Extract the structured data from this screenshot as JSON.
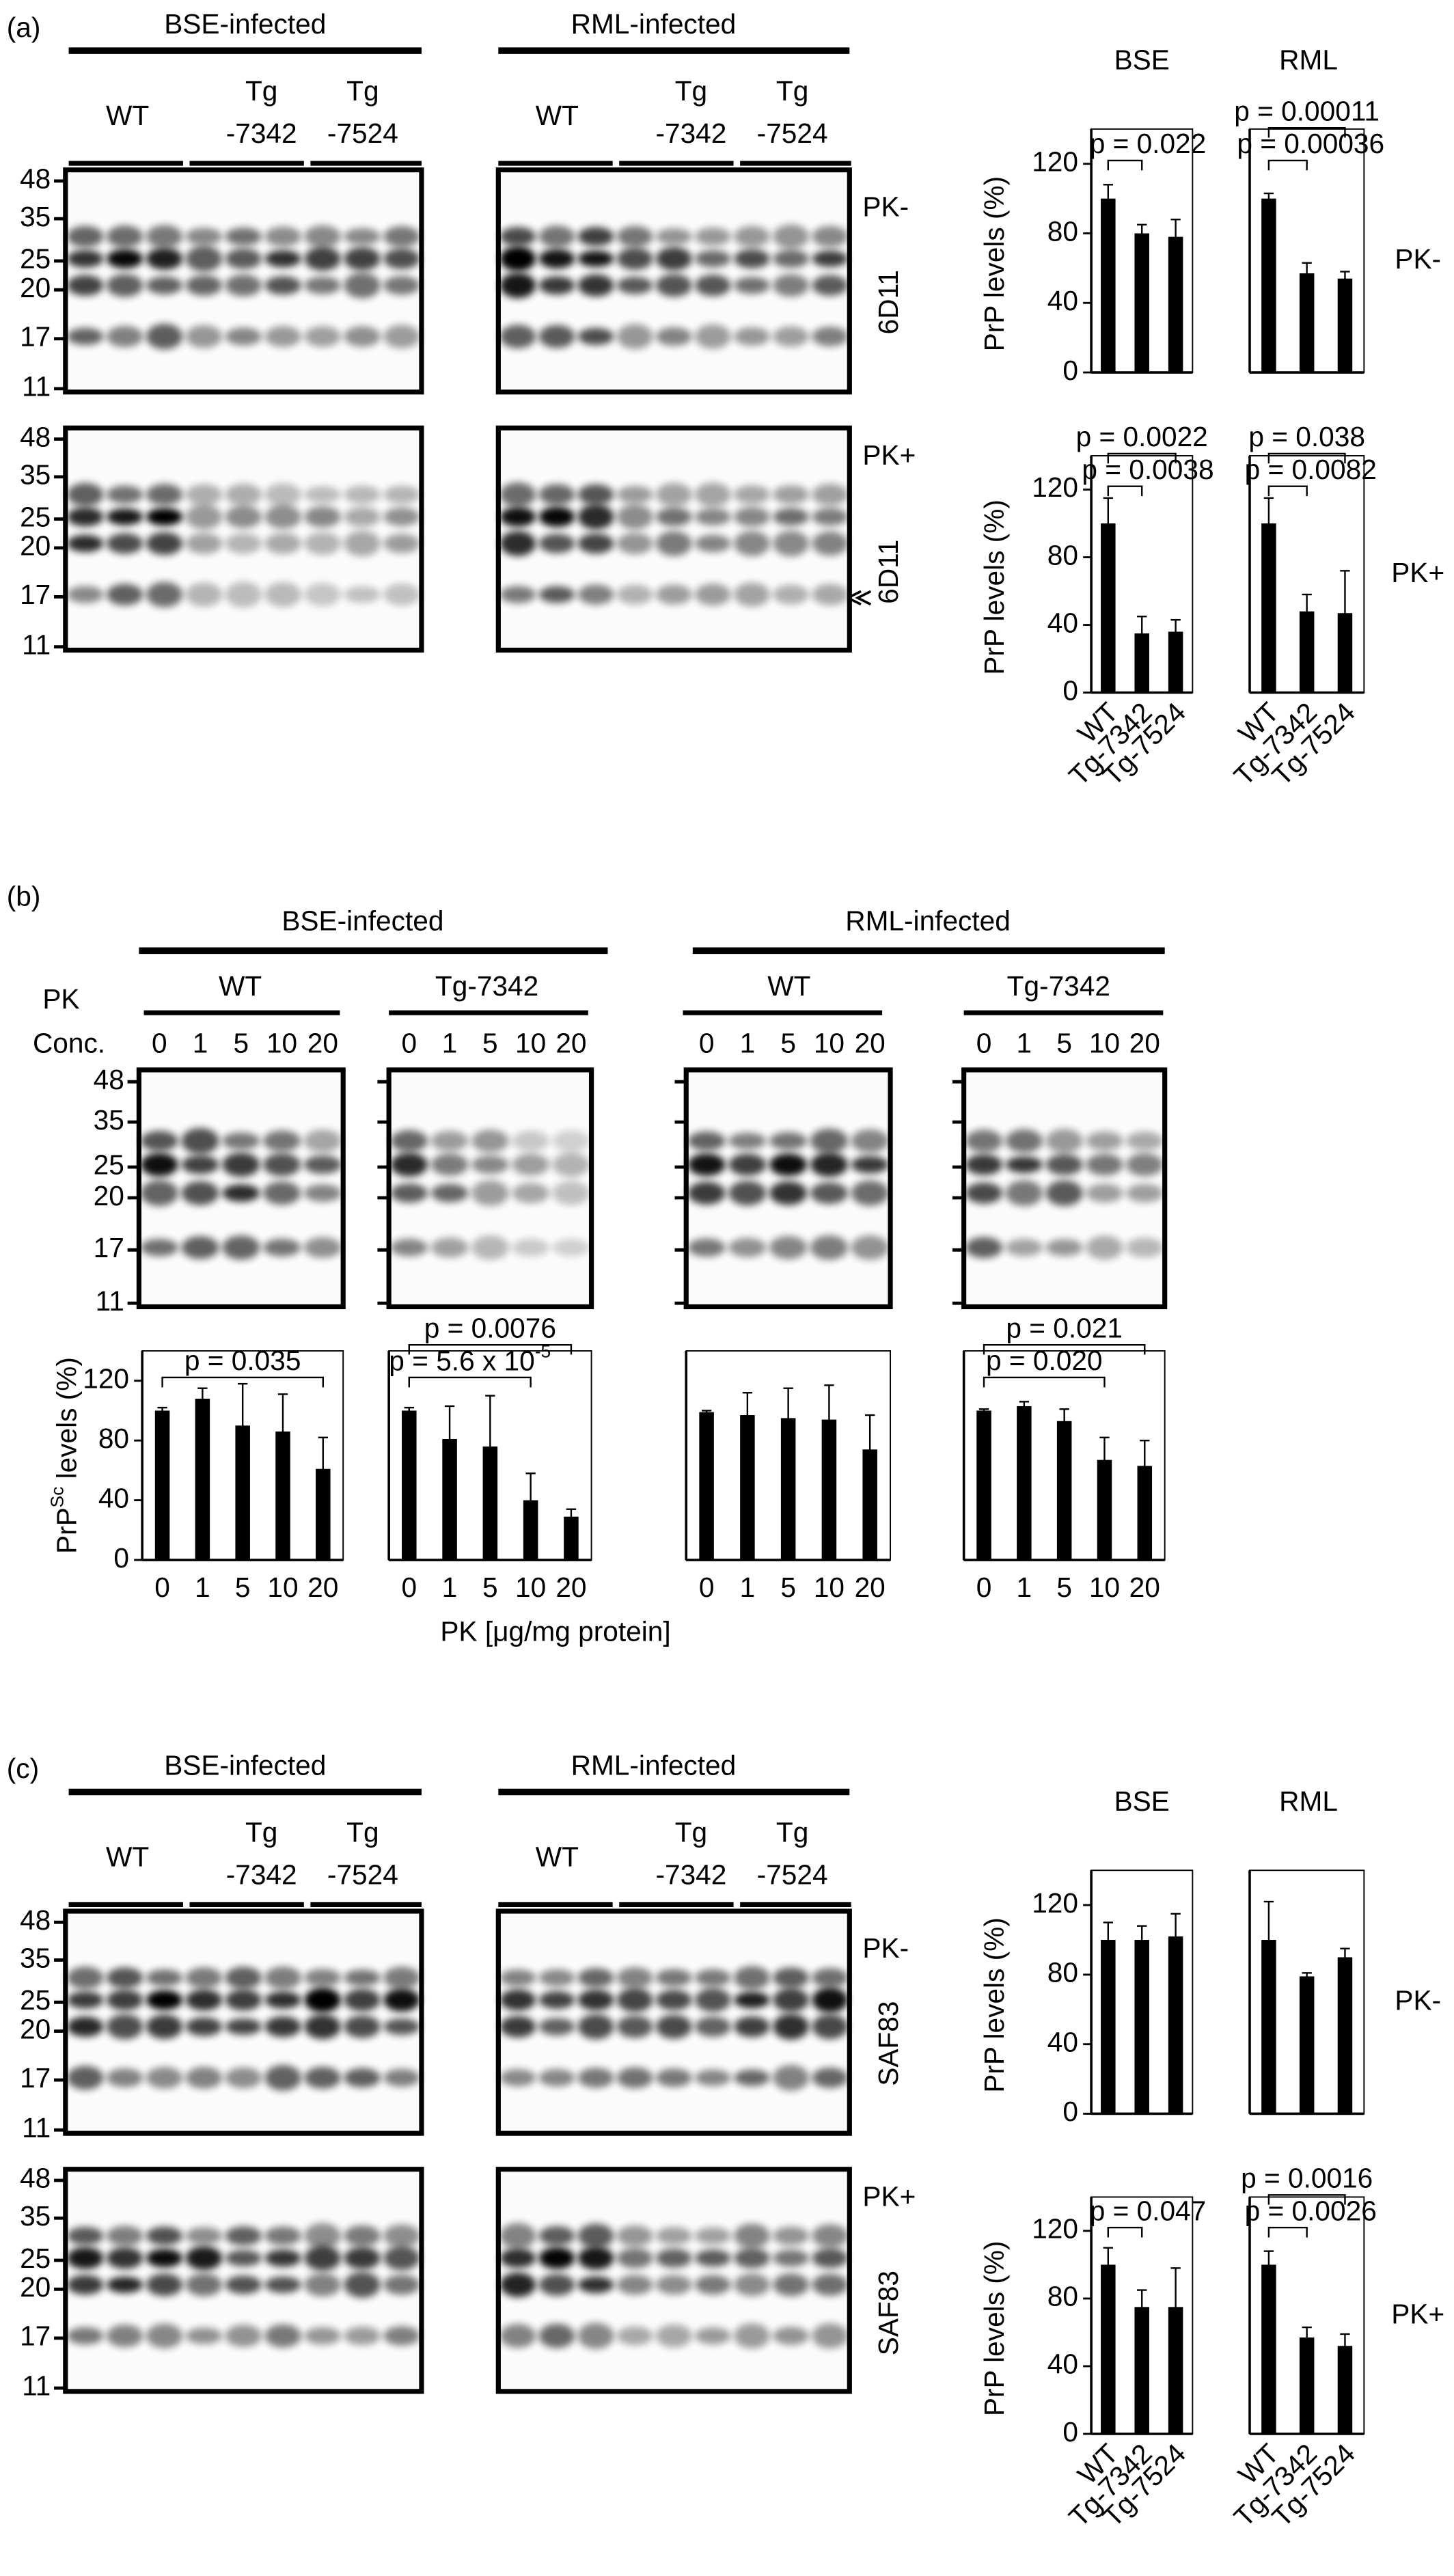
{
  "panels": [
    {
      "label": "(a)",
      "groups": [
        "BSE-infected",
        "RML-infected"
      ],
      "lanes": [
        [
          "WT"
        ],
        [
          "Tg",
          "-7342"
        ],
        [
          "Tg",
          "-7524"
        ]
      ],
      "markers": [
        48,
        35,
        25,
        20,
        17,
        11
      ],
      "side_labels": [
        "PK-",
        "6D11",
        "PK+",
        "6D11"
      ],
      "chart_titles": [
        "BSE",
        "RML"
      ],
      "row_labels": [
        "PK-",
        "PK+"
      ]
    },
    {
      "label": "(b)",
      "groups": [
        "BSE-infected",
        "RML-infected"
      ],
      "subgroups": [
        "WT",
        "Tg-7342",
        "WT",
        "Tg-7342"
      ],
      "conc_label": [
        "PK",
        "Conc."
      ],
      "lanes": [
        "0",
        "1",
        "5",
        "10",
        "20"
      ],
      "markers": [
        48,
        35,
        25,
        20,
        17,
        11
      ],
      "x_label": "PK [μg/mg protein]"
    },
    {
      "label": "(c)",
      "groups": [
        "BSE-infected",
        "RML-infected"
      ],
      "lanes": [
        [
          "WT"
        ],
        [
          "Tg",
          "-7342"
        ],
        [
          "Tg",
          "-7524"
        ]
      ],
      "markers": [
        48,
        35,
        25,
        20,
        17,
        11
      ],
      "side_labels": [
        "PK-",
        "SAF83",
        "PK+",
        "SAF83"
      ],
      "chart_titles": [
        "BSE",
        "RML"
      ],
      "row_labels": [
        "PK-",
        "PK+"
      ]
    }
  ],
  "chart_data": [
    {
      "type": "bar",
      "y_label": "PrP levels (%)",
      "categories": [
        null,
        null,
        null
      ],
      "values": [
        100,
        80,
        78
      ],
      "errors": [
        8,
        5,
        10
      ],
      "ylim": [
        0,
        140
      ],
      "yticks": [
        0,
        40,
        80,
        120
      ],
      "color": "#000000",
      "annotations": [
        {
          "text": "p = 0.022",
          "from": 0,
          "to": 1
        }
      ]
    },
    {
      "type": "bar",
      "categories": [
        null,
        null,
        null
      ],
      "values": [
        100,
        57,
        54
      ],
      "errors": [
        3,
        6,
        4
      ],
      "ylim": [
        0,
        140
      ],
      "color": "#000000",
      "annotations": [
        {
          "text": "p = 0.00011",
          "from": 0,
          "to": 2
        },
        {
          "text": "p = 0.00036",
          "from": 0,
          "to": 1
        }
      ]
    },
    {
      "type": "bar",
      "y_label": "PrP levels (%)",
      "categories": [
        "WT",
        "Tg-7342",
        "Tg-7524"
      ],
      "values": [
        100,
        35,
        36
      ],
      "errors": [
        15,
        10,
        7
      ],
      "ylim": [
        0,
        140
      ],
      "yticks": [
        0,
        40,
        80,
        120
      ],
      "color": "#000000",
      "annotations": [
        {
          "text": "p = 0.0022",
          "from": 0,
          "to": 2
        },
        {
          "text": "p = 0.0038",
          "from": 0,
          "to": 1
        }
      ]
    },
    {
      "type": "bar",
      "categories": [
        "WT",
        "Tg-7342",
        "Tg-7524"
      ],
      "values": [
        100,
        48,
        47
      ],
      "errors": [
        15,
        10,
        25
      ],
      "ylim": [
        0,
        140
      ],
      "color": "#000000",
      "annotations": [
        {
          "text": "p = 0.038",
          "from": 0,
          "to": 2
        },
        {
          "text": "p = 0.0082",
          "from": 0,
          "to": 1
        }
      ]
    },
    {
      "type": "bar",
      "y_label": [
        "PrP",
        "Sc",
        " levels (%)"
      ],
      "categories": [
        "0",
        "1",
        "5",
        "10",
        "20"
      ],
      "values": [
        100,
        108,
        90,
        86,
        61
      ],
      "errors": [
        2,
        7,
        28,
        25,
        21
      ],
      "ylim": [
        0,
        140
      ],
      "yticks": [
        0,
        40,
        80,
        120
      ],
      "color": "#000000",
      "annotations": [
        {
          "text": "p = 0.035",
          "from": 0,
          "to": 4
        }
      ]
    },
    {
      "type": "bar",
      "categories": [
        "0",
        "1",
        "5",
        "10",
        "20"
      ],
      "values": [
        100,
        81,
        76,
        40,
        29
      ],
      "errors": [
        2,
        22,
        34,
        18,
        5
      ],
      "ylim": [
        0,
        140
      ],
      "color": "#000000",
      "annotations": [
        {
          "text": "p = 0.0076",
          "from": 0,
          "to": 4
        },
        {
          "text": [
            "p = 5.6 x 10",
            "-5"
          ],
          "from": 0,
          "to": 3
        }
      ]
    },
    {
      "type": "bar",
      "categories": [
        "0",
        "1",
        "5",
        "10",
        "20"
      ],
      "values": [
        99,
        97,
        95,
        94,
        74
      ],
      "errors": [
        1,
        15,
        20,
        23,
        23
      ],
      "ylim": [
        0,
        140
      ],
      "color": "#000000",
      "annotations": []
    },
    {
      "type": "bar",
      "categories": [
        "0",
        "1",
        "5",
        "10",
        "20"
      ],
      "values": [
        100,
        103,
        93,
        67,
        63
      ],
      "errors": [
        1,
        3,
        8,
        15,
        17
      ],
      "ylim": [
        0,
        140
      ],
      "color": "#000000",
      "annotations": [
        {
          "text": "p = 0.021",
          "from": 0,
          "to": 4
        },
        {
          "text": "p = 0.020",
          "from": 0,
          "to": 3
        }
      ]
    },
    {
      "type": "bar",
      "y_label": "PrP levels (%)",
      "categories": [
        null,
        null,
        null
      ],
      "values": [
        100,
        100,
        102
      ],
      "errors": [
        10,
        8,
        13
      ],
      "ylim": [
        0,
        140
      ],
      "yticks": [
        0,
        40,
        80,
        120
      ],
      "color": "#000000",
      "annotations": []
    },
    {
      "type": "bar",
      "categories": [
        null,
        null,
        null
      ],
      "values": [
        100,
        79,
        90
      ],
      "errors": [
        22,
        2,
        5
      ],
      "ylim": [
        0,
        140
      ],
      "color": "#000000",
      "annotations": []
    },
    {
      "type": "bar",
      "y_label": "PrP levels (%)",
      "categories": [
        "WT",
        "Tg-7342",
        "Tg-7524"
      ],
      "values": [
        100,
        75,
        75
      ],
      "errors": [
        10,
        10,
        23
      ],
      "ylim": [
        0,
        140
      ],
      "yticks": [
        0,
        40,
        80,
        120
      ],
      "color": "#000000",
      "annotations": [
        {
          "text": "p = 0.047",
          "from": 0,
          "to": 1
        }
      ]
    },
    {
      "type": "bar",
      "categories": [
        "WT",
        "Tg-7342",
        "Tg-7524"
      ],
      "values": [
        100,
        57,
        52
      ],
      "errors": [
        8,
        6,
        7
      ],
      "ylim": [
        0,
        140
      ],
      "color": "#000000",
      "annotations": [
        {
          "text": "p = 0.0016",
          "from": 0,
          "to": 2
        },
        {
          "text": "p = 0.0026",
          "from": 0,
          "to": 1
        }
      ]
    }
  ]
}
